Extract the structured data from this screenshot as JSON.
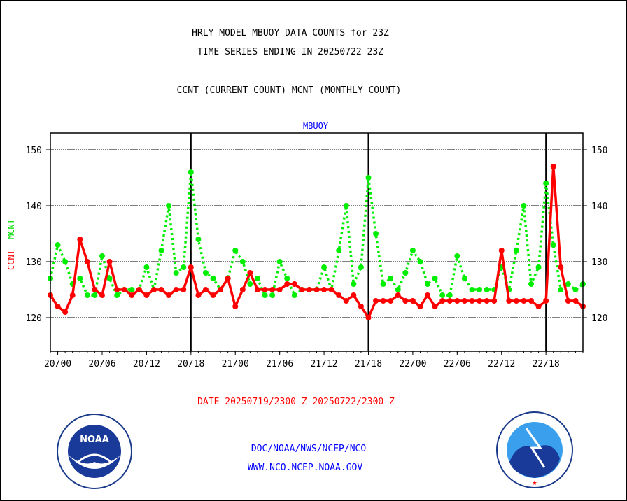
{
  "chart_data": {
    "type": "line",
    "title": [
      "HRLY MODEL MBUOY DATA COUNTS for 23Z",
      "TIME SERIES ENDING IN 20250722 23Z"
    ],
    "subtitle": "CCNT (CURRENT COUNT) MCNT (MONTHLY COUNT)",
    "panel_label": "MBUOY",
    "ylabel_ccnt": "CCNT",
    "ylabel_mcnt": "MCNT",
    "xlabel": "DATE 20250719/2300 Z-20250722/2300 Z",
    "ylim": [
      114,
      153
    ],
    "yticks": [
      120,
      130,
      140,
      150
    ],
    "x_hours_range": [
      0,
      72
    ],
    "x_start": "19/23",
    "xticks": [
      {
        "hour": 1,
        "label": "20/00"
      },
      {
        "hour": 7,
        "label": "20/06"
      },
      {
        "hour": 13,
        "label": "20/12"
      },
      {
        "hour": 19,
        "label": "20/18"
      },
      {
        "hour": 25,
        "label": "21/00"
      },
      {
        "hour": 31,
        "label": "21/06"
      },
      {
        "hour": 37,
        "label": "21/12"
      },
      {
        "hour": 43,
        "label": "21/18"
      },
      {
        "hour": 49,
        "label": "22/00"
      },
      {
        "hour": 55,
        "label": "22/06"
      },
      {
        "hour": 61,
        "label": "22/12"
      },
      {
        "hour": 67,
        "label": "22/18"
      }
    ],
    "day_lines_hours": [
      19,
      43,
      67
    ],
    "grid": true,
    "series": [
      {
        "name": "CCNT",
        "color": "#ff0000",
        "style": "solid",
        "values": [
          124,
          122,
          121,
          124,
          134,
          130,
          125,
          124,
          130,
          125,
          125,
          124,
          125,
          124,
          125,
          125,
          124,
          125,
          125,
          129,
          124,
          125,
          124,
          125,
          127,
          122,
          125,
          128,
          125,
          125,
          125,
          125,
          126,
          126,
          125,
          125,
          125,
          125,
          125,
          124,
          123,
          124,
          122,
          120,
          123,
          123,
          123,
          124,
          123,
          123,
          122,
          124,
          122,
          123,
          123,
          123,
          123,
          123,
          123,
          123,
          123,
          132,
          123,
          123,
          123,
          123,
          122,
          123,
          147,
          129,
          123,
          123,
          122
        ]
      },
      {
        "name": "MCNT",
        "color": "#00ee00",
        "style": "dotted",
        "values": [
          127,
          133,
          130,
          126,
          127,
          124,
          124,
          131,
          127,
          124,
          125,
          125,
          125,
          129,
          125,
          132,
          140,
          128,
          129,
          146,
          134,
          128,
          127,
          125,
          127,
          132,
          130,
          126,
          127,
          124,
          124,
          130,
          127,
          124,
          125,
          125,
          125,
          129,
          125,
          132,
          140,
          126,
          129,
          145,
          135,
          126,
          127,
          125,
          128,
          132,
          130,
          126,
          127,
          124,
          124,
          131,
          127,
          125,
          125,
          125,
          125,
          129,
          125,
          132,
          140,
          126,
          129,
          144,
          133,
          125,
          126,
          125,
          126
        ]
      }
    ]
  },
  "footer": {
    "line1": "DOC/NOAA/NWS/NCEP/NCO",
    "line2": "WWW.NCO.NCEP.NOAA.GOV"
  },
  "logos": {
    "left": "NOAA",
    "right": "NATIONAL WEATHER SERVICE"
  }
}
